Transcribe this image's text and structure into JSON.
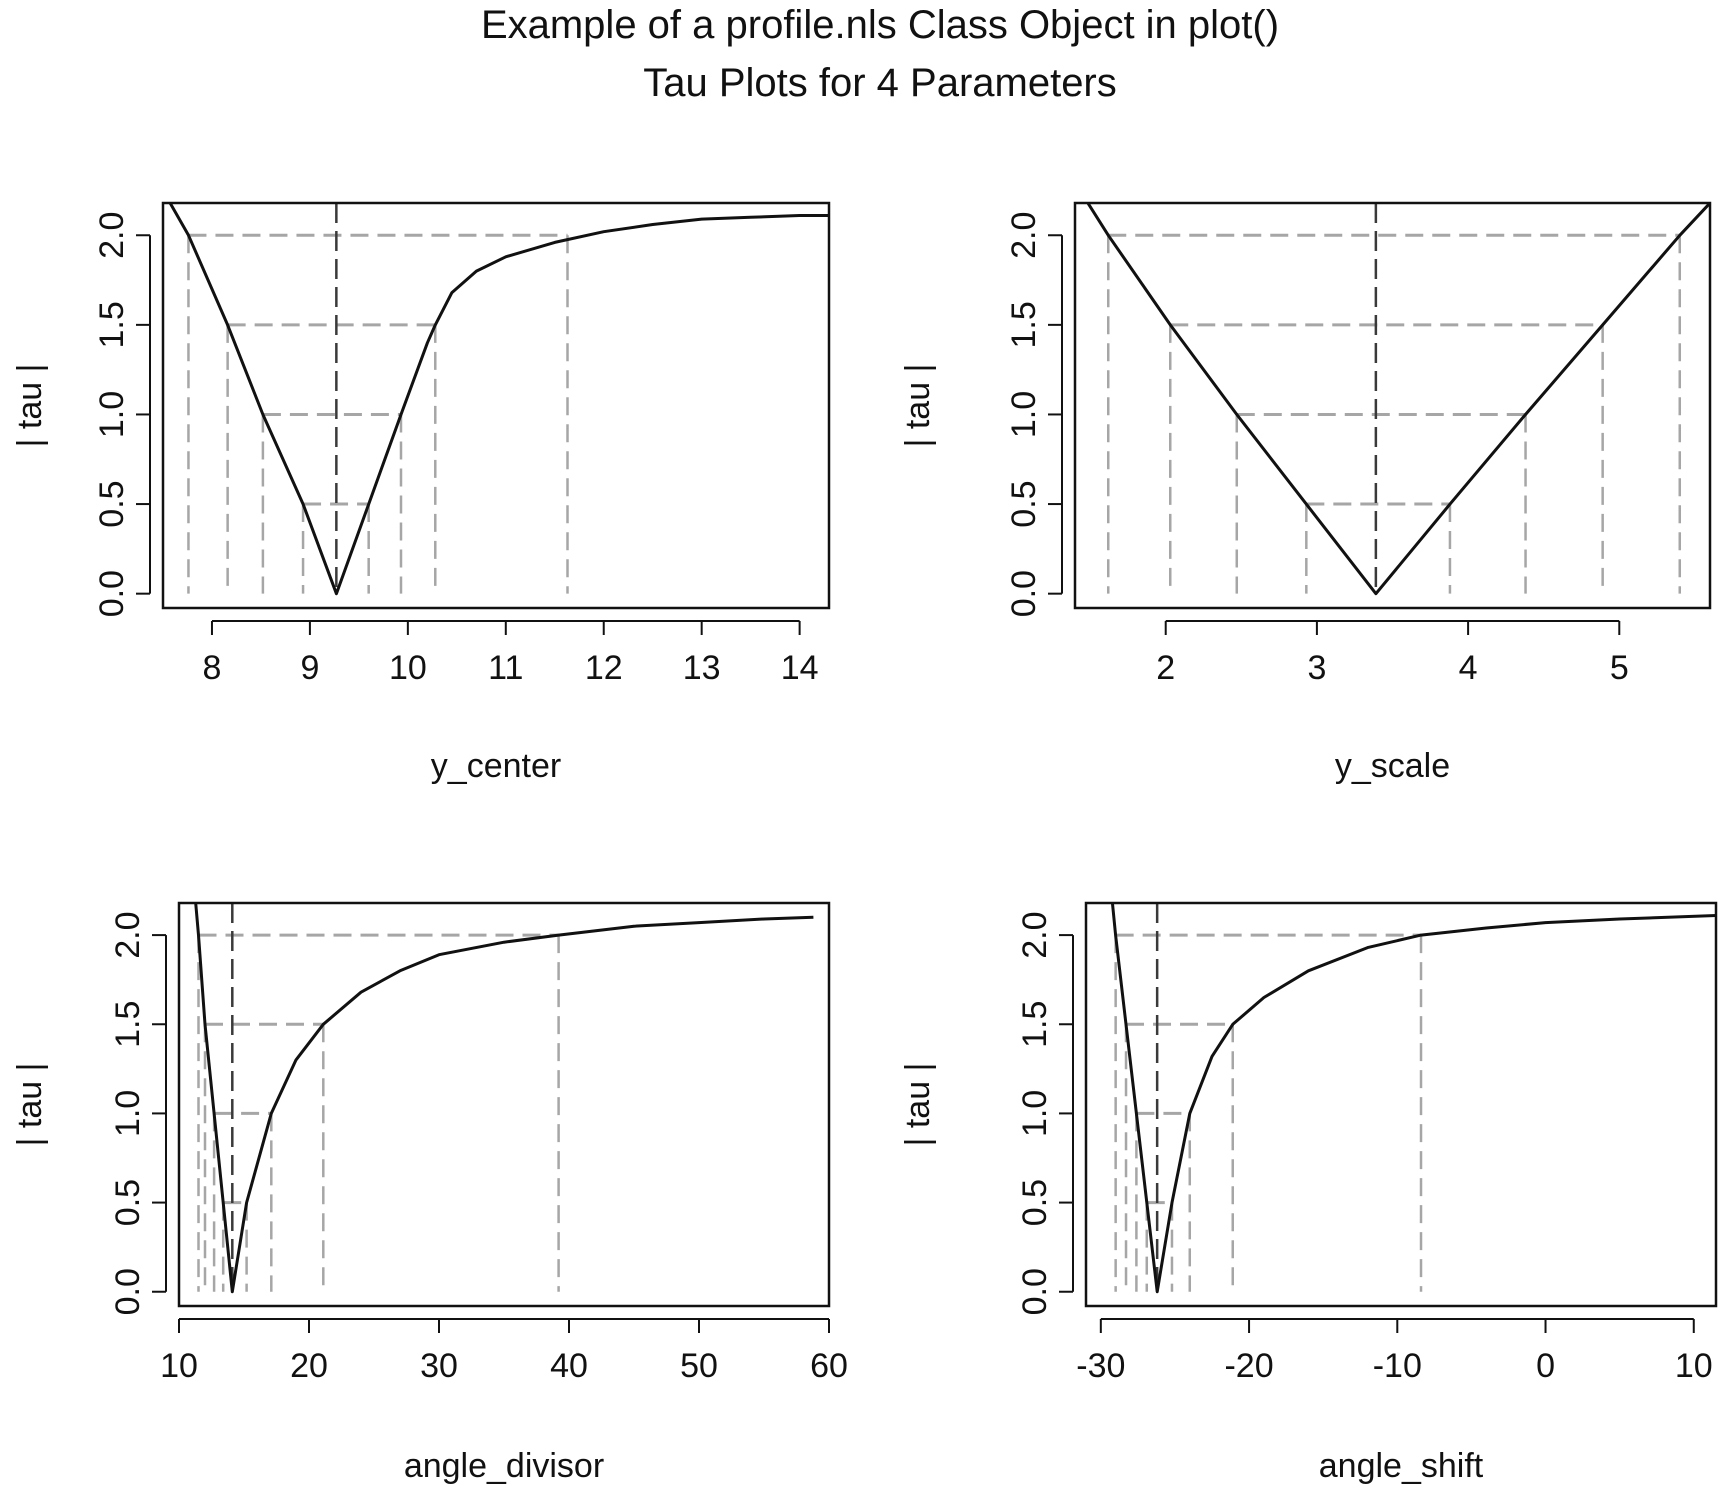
{
  "figure": {
    "title_line1": "Example of a profile.nls Class Object in plot()",
    "title_line2": "Tau Plots for 4 Parameters"
  },
  "colors": {
    "curve": "#111111",
    "reference_lines": "#a6a6a6",
    "estimate_line": "#3a3a3a",
    "axes": "#111111"
  },
  "chart_data": [
    {
      "type": "line",
      "title": "",
      "xlabel": "y_center",
      "ylabel": "| tau |",
      "xlim": [
        7.5,
        14.3
      ],
      "ylim": [
        -0.08,
        2.18
      ],
      "xticks": [
        8,
        9,
        10,
        11,
        12,
        13,
        14
      ],
      "yticks": [
        0.0,
        0.5,
        1.0,
        1.5,
        2.0
      ],
      "ytick_labels": [
        "0.0",
        "0.5",
        "1.0",
        "1.5",
        "2.0"
      ],
      "grid": false,
      "legend": "none",
      "estimate": 9.27,
      "series": [
        {
          "x": [
            7.5,
            7.76,
            8.16,
            8.52,
            8.93,
            9.27,
            9.6,
            9.93,
            10.2,
            10.28,
            10.45,
            10.7,
            11.0,
            11.5,
            12.0,
            12.5,
            13.0,
            13.5,
            14.0,
            14.3
          ],
          "y": [
            2.25,
            2.0,
            1.5,
            1.0,
            0.5,
            0.0,
            0.5,
            1.0,
            1.4,
            1.5,
            1.68,
            1.8,
            1.88,
            1.96,
            2.02,
            2.06,
            2.09,
            2.1,
            2.11,
            2.11
          ]
        }
      ],
      "reference_levels": [
        {
          "tau": 0.5,
          "lower": 8.93,
          "upper": 9.6
        },
        {
          "tau": 1.0,
          "lower": 8.52,
          "upper": 9.93
        },
        {
          "tau": 1.5,
          "lower": 8.16,
          "upper": 10.28
        },
        {
          "tau": 2.0,
          "lower": 7.76,
          "upper": 11.63
        }
      ]
    },
    {
      "type": "line",
      "title": "",
      "xlabel": "y_scale",
      "ylabel": "| tau |",
      "xlim": [
        1.4,
        5.6
      ],
      "ylim": [
        -0.08,
        2.18
      ],
      "xticks": [
        2,
        3,
        4,
        5
      ],
      "yticks": [
        0.0,
        0.5,
        1.0,
        1.5,
        2.0
      ],
      "ytick_labels": [
        "0.0",
        "0.5",
        "1.0",
        "1.5",
        "2.0"
      ],
      "grid": false,
      "legend": "none",
      "estimate": 3.39,
      "series": [
        {
          "x": [
            1.47,
            1.62,
            2.03,
            2.47,
            2.93,
            3.39,
            3.88,
            4.38,
            4.89,
            5.4,
            5.6
          ],
          "y": [
            2.2,
            2.0,
            1.5,
            1.0,
            0.5,
            0.0,
            0.5,
            1.0,
            1.5,
            2.0,
            2.18
          ]
        }
      ],
      "reference_levels": [
        {
          "tau": 0.5,
          "lower": 2.93,
          "upper": 3.88
        },
        {
          "tau": 1.0,
          "lower": 2.47,
          "upper": 4.38
        },
        {
          "tau": 1.5,
          "lower": 2.03,
          "upper": 4.89
        },
        {
          "tau": 2.0,
          "lower": 1.62,
          "upper": 5.4
        }
      ]
    },
    {
      "type": "line",
      "title": "",
      "xlabel": "angle_divisor",
      "ylabel": "| tau |",
      "xlim": [
        10,
        60
      ],
      "ylim": [
        -0.08,
        2.18
      ],
      "xticks": [
        10,
        20,
        30,
        40,
        50,
        60
      ],
      "yticks": [
        0.0,
        0.5,
        1.0,
        1.5,
        2.0
      ],
      "ytick_labels": [
        "0.0",
        "0.5",
        "1.0",
        "1.5",
        "2.0"
      ],
      "grid": false,
      "legend": "none",
      "estimate": 14.1,
      "series": [
        {
          "x": [
            11.2,
            11.5,
            12.0,
            12.7,
            13.4,
            14.1,
            15.2,
            17.1,
            19.0,
            21.1,
            24.0,
            27.0,
            30.0,
            35.0,
            39.2,
            45.0,
            50.0,
            55.0,
            58.8
          ],
          "y": [
            2.25,
            2.0,
            1.5,
            1.0,
            0.5,
            0.0,
            0.5,
            1.0,
            1.3,
            1.5,
            1.68,
            1.8,
            1.89,
            1.96,
            2.0,
            2.05,
            2.07,
            2.09,
            2.1
          ]
        }
      ],
      "reference_levels": [
        {
          "tau": 0.5,
          "lower": 13.4,
          "upper": 15.2
        },
        {
          "tau": 1.0,
          "lower": 12.7,
          "upper": 17.1
        },
        {
          "tau": 1.5,
          "lower": 12.0,
          "upper": 21.1
        },
        {
          "tau": 2.0,
          "lower": 11.5,
          "upper": 39.2
        }
      ]
    },
    {
      "type": "line",
      "title": "",
      "xlabel": "angle_shift",
      "ylabel": "| tau |",
      "xlim": [
        -31,
        11.5
      ],
      "ylim": [
        -0.08,
        2.18
      ],
      "xticks": [
        -30,
        -20,
        -10,
        0,
        10
      ],
      "yticks": [
        0.0,
        0.5,
        1.0,
        1.5,
        2.0
      ],
      "ytick_labels": [
        "0.0",
        "0.5",
        "1.0",
        "1.5",
        "2.0"
      ],
      "grid": false,
      "legend": "none",
      "estimate": -26.2,
      "series": [
        {
          "x": [
            -29.3,
            -29.0,
            -28.3,
            -27.6,
            -26.9,
            -26.2,
            -25.2,
            -24.0,
            -22.5,
            -21.1,
            -19.0,
            -16.0,
            -12.0,
            -8.4,
            -4.0,
            0.0,
            5.0,
            11.5
          ],
          "y": [
            2.25,
            2.0,
            1.5,
            1.0,
            0.5,
            0.0,
            0.5,
            1.0,
            1.32,
            1.5,
            1.65,
            1.8,
            1.93,
            2.0,
            2.04,
            2.07,
            2.09,
            2.11
          ]
        }
      ],
      "reference_levels": [
        {
          "tau": 0.5,
          "lower": -26.9,
          "upper": -25.2
        },
        {
          "tau": 1.0,
          "lower": -27.6,
          "upper": -24.0
        },
        {
          "tau": 1.5,
          "lower": -28.3,
          "upper": -21.1
        },
        {
          "tau": 2.0,
          "lower": -29.0,
          "upper": -8.4
        }
      ]
    }
  ]
}
